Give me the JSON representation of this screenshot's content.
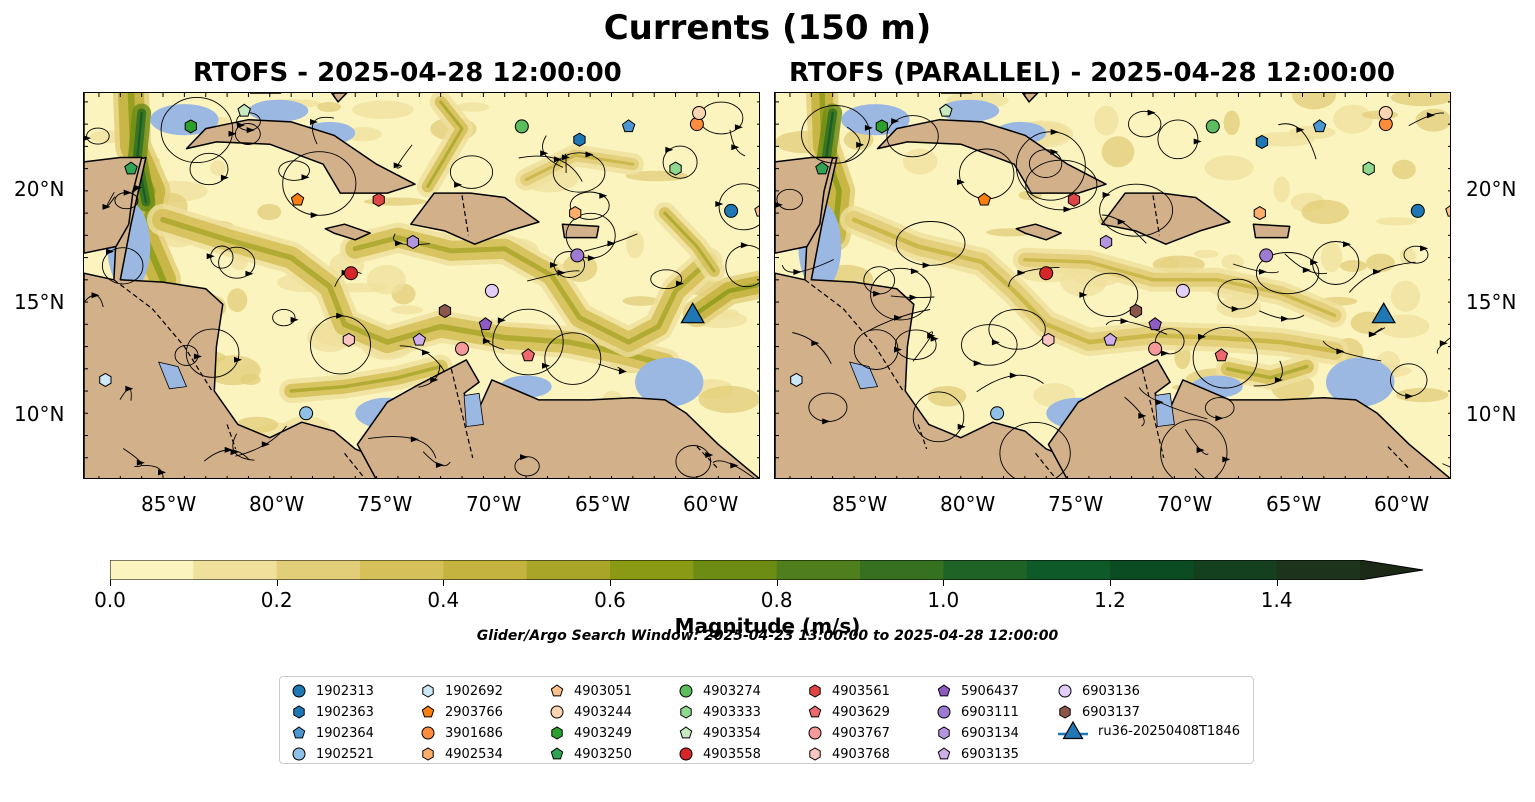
{
  "figure": {
    "suptitle": "Currents (150 m)",
    "left_title": "RTOFS - 2025-04-28 12:00:00",
    "right_title": "RTOFS (PARALLEL) - 2025-04-28 12:00:00",
    "lat_labels": [
      "20°N",
      "15°N",
      "10°N"
    ],
    "lon_labels": [
      "85°W",
      "80°W",
      "75°W",
      "70°W",
      "65°W",
      "60°W"
    ],
    "extent": {
      "lon_min": -89.7,
      "lon_max": -58.0,
      "lat_min": 7.0,
      "lat_max": 24.4
    },
    "search_window": "Glider/Argo Search Window: 2025-04-23 13:00:00 to 2025-04-28 12:00:00"
  },
  "colorbar": {
    "label": "Magnitude (m/s)",
    "ticks": [
      "0.0",
      "0.2",
      "0.4",
      "0.6",
      "0.8",
      "1.0",
      "1.2",
      "1.4"
    ],
    "min": 0.0,
    "max": 1.5,
    "extend": "max",
    "colors": [
      "#fbf4bf",
      "#efe09c",
      "#e2cd78",
      "#d5c05a",
      "#c4b33f",
      "#a9a528",
      "#8a9a15",
      "#6c8c14",
      "#4f7f1c",
      "#367021",
      "#1f6426",
      "#0e5a28",
      "#0b4c22",
      "#14401f",
      "#1d331b",
      "#1b2a17"
    ]
  },
  "colors": {
    "land": "#d2b08a",
    "water": "#9bb8e2",
    "ocean_low": "#fbf4bf"
  },
  "legend": [
    {
      "id": "1902313",
      "marker": "circle",
      "color": "#1f77b4"
    },
    {
      "id": "1902363",
      "marker": "hexagon",
      "color": "#1f77b4"
    },
    {
      "id": "1902364",
      "marker": "pentagon",
      "color": "#4a97d1"
    },
    {
      "id": "1902521",
      "marker": "circle",
      "color": "#8ec0e8"
    },
    {
      "id": "1902692",
      "marker": "hexagon",
      "color": "#cde7f8"
    },
    {
      "id": "2903766",
      "marker": "pentagon",
      "color": "#ff7f0e"
    },
    {
      "id": "3901686",
      "marker": "circle",
      "color": "#fd8d3c"
    },
    {
      "id": "4902534",
      "marker": "hexagon",
      "color": "#fdae6b"
    },
    {
      "id": "4903051",
      "marker": "pentagon",
      "color": "#fdc08a"
    },
    {
      "id": "4903244",
      "marker": "circle",
      "color": "#fdd5b0"
    },
    {
      "id": "4903249",
      "marker": "hexagon",
      "color": "#2ca02c"
    },
    {
      "id": "4903250",
      "marker": "pentagon",
      "color": "#31a354"
    },
    {
      "id": "4903274",
      "marker": "circle",
      "color": "#5cbd5c"
    },
    {
      "id": "4903333",
      "marker": "hexagon",
      "color": "#8fd88f"
    },
    {
      "id": "4903354",
      "marker": "pentagon",
      "color": "#c7e9c0"
    },
    {
      "id": "4903558",
      "marker": "circle",
      "color": "#d62728"
    },
    {
      "id": "4903561",
      "marker": "hexagon",
      "color": "#e04546"
    },
    {
      "id": "4903629",
      "marker": "pentagon",
      "color": "#ec6a6e"
    },
    {
      "id": "4903767",
      "marker": "circle",
      "color": "#f59a9a"
    },
    {
      "id": "4903768",
      "marker": "hexagon",
      "color": "#fcc5c0"
    },
    {
      "id": "5906437",
      "marker": "pentagon",
      "color": "#8e5bc4"
    },
    {
      "id": "6903111",
      "marker": "circle",
      "color": "#9e7ad2"
    },
    {
      "id": "6903134",
      "marker": "hexagon",
      "color": "#b295de"
    },
    {
      "id": "6903135",
      "marker": "pentagon",
      "color": "#cdaeea"
    },
    {
      "id": "6903136",
      "marker": "circle",
      "color": "#e3cef7"
    },
    {
      "id": "6903137",
      "marker": "hexagon",
      "color": "#8c564b"
    },
    {
      "id": "ru36-20250408T1846",
      "marker": "triangle",
      "color": "#1f77b4"
    }
  ],
  "positions_left": [
    {
      "id": "1902313",
      "lon": -59.4,
      "lat": 19.1
    },
    {
      "id": "1902363",
      "lon": -66.5,
      "lat": 22.3
    },
    {
      "id": "1902364",
      "lon": -64.2,
      "lat": 22.9
    },
    {
      "id": "1902521",
      "lon": -79.3,
      "lat": 10.0
    },
    {
      "id": "1902692",
      "lon": -88.7,
      "lat": 11.5
    },
    {
      "id": "2903766",
      "lon": -79.7,
      "lat": 19.6
    },
    {
      "id": "3901686",
      "lon": -61.0,
      "lat": 23.0
    },
    {
      "id": "4902534",
      "lon": -66.7,
      "lat": 19.0
    },
    {
      "id": "4903051",
      "lon": -58.0,
      "lat": 19.1
    },
    {
      "id": "4903244",
      "lon": -60.9,
      "lat": 23.5
    },
    {
      "id": "4903249",
      "lon": -84.7,
      "lat": 22.9
    },
    {
      "id": "4903250",
      "lon": -87.5,
      "lat": 21.0
    },
    {
      "id": "4903274",
      "lon": -69.2,
      "lat": 22.9
    },
    {
      "id": "4903333",
      "lon": -62.0,
      "lat": 21.0
    },
    {
      "id": "4903354",
      "lon": -82.2,
      "lat": 23.6
    },
    {
      "id": "4903558",
      "lon": -77.2,
      "lat": 16.3
    },
    {
      "id": "4903561",
      "lon": -75.9,
      "lat": 19.6
    },
    {
      "id": "4903629",
      "lon": -68.9,
      "lat": 12.6
    },
    {
      "id": "4903767",
      "lon": -72.0,
      "lat": 12.9
    },
    {
      "id": "4903768",
      "lon": -77.3,
      "lat": 13.3
    },
    {
      "id": "5906437",
      "lon": -70.9,
      "lat": 14.0
    },
    {
      "id": "6903111",
      "lon": -66.6,
      "lat": 17.1
    },
    {
      "id": "6903134",
      "lon": -74.3,
      "lat": 17.7
    },
    {
      "id": "6903135",
      "lon": -74.0,
      "lat": 13.3
    },
    {
      "id": "6903136",
      "lon": -70.6,
      "lat": 15.5
    },
    {
      "id": "6903137",
      "lon": -72.8,
      "lat": 14.6
    },
    {
      "id": "ru36-20250408T1846",
      "lon": -61.2,
      "lat": 14.5
    }
  ],
  "positions_right": [
    {
      "id": "1902313",
      "lon": -59.6,
      "lat": 19.1
    },
    {
      "id": "1902363",
      "lon": -66.9,
      "lat": 22.2
    },
    {
      "id": "1902364",
      "lon": -64.2,
      "lat": 22.9
    },
    {
      "id": "1902521",
      "lon": -79.3,
      "lat": 10.0
    },
    {
      "id": "1902692",
      "lon": -88.7,
      "lat": 11.5
    },
    {
      "id": "2903766",
      "lon": -79.9,
      "lat": 19.6
    },
    {
      "id": "3901686",
      "lon": -61.1,
      "lat": 23.0
    },
    {
      "id": "4902534",
      "lon": -67.0,
      "lat": 19.0
    },
    {
      "id": "4903051",
      "lon": -58.0,
      "lat": 19.1
    },
    {
      "id": "4903244",
      "lon": -61.1,
      "lat": 23.5
    },
    {
      "id": "4903249",
      "lon": -84.7,
      "lat": 22.9
    },
    {
      "id": "4903250",
      "lon": -87.5,
      "lat": 21.0
    },
    {
      "id": "4903274",
      "lon": -69.2,
      "lat": 22.9
    },
    {
      "id": "4903333",
      "lon": -61.9,
      "lat": 21.0
    },
    {
      "id": "4903354",
      "lon": -81.7,
      "lat": 23.6
    },
    {
      "id": "4903558",
      "lon": -77.0,
      "lat": 16.3
    },
    {
      "id": "4903561",
      "lon": -75.7,
      "lat": 19.6
    },
    {
      "id": "4903629",
      "lon": -68.8,
      "lat": 12.6
    },
    {
      "id": "4903767",
      "lon": -71.9,
      "lat": 12.9
    },
    {
      "id": "4903768",
      "lon": -76.9,
      "lat": 13.3
    },
    {
      "id": "5906437",
      "lon": -71.9,
      "lat": 14.0
    },
    {
      "id": "6903111",
      "lon": -66.7,
      "lat": 17.1
    },
    {
      "id": "6903134",
      "lon": -74.2,
      "lat": 17.7
    },
    {
      "id": "6903135",
      "lon": -74.0,
      "lat": 13.3
    },
    {
      "id": "6903136",
      "lon": -70.6,
      "lat": 15.5
    },
    {
      "id": "6903137",
      "lon": -72.8,
      "lat": 14.6
    },
    {
      "id": "ru36-20250408T1846",
      "lon": -61.2,
      "lat": 14.5
    }
  ]
}
